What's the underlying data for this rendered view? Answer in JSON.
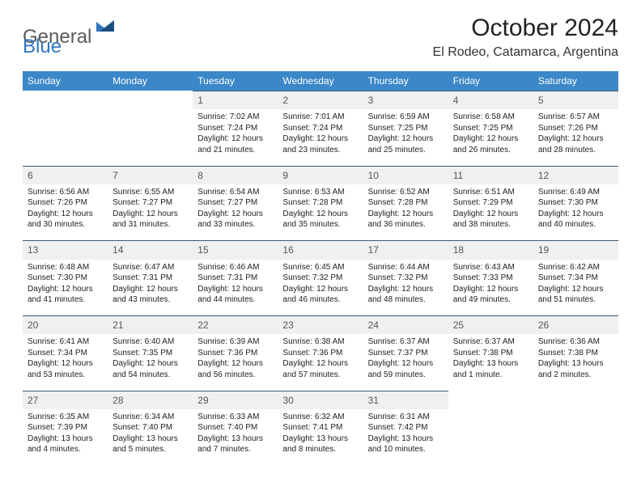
{
  "logo": {
    "text1": "General",
    "text2": "Blue"
  },
  "title": "October 2024",
  "location": "El Rodeo, Catamarca, Argentina",
  "colors": {
    "header_bg": "#3b87c8",
    "header_text": "#ffffff",
    "daynum_bg": "#eef0f2",
    "daynum_text": "#555555",
    "row_border": "#3b5b7a",
    "body_text": "#222222",
    "logo_gray": "#5a5a5a",
    "logo_blue": "#2f78bf"
  },
  "day_headers": [
    "Sunday",
    "Monday",
    "Tuesday",
    "Wednesday",
    "Thursday",
    "Friday",
    "Saturday"
  ],
  "weeks": [
    [
      null,
      null,
      {
        "n": "1",
        "sr": "7:02 AM",
        "ss": "7:24 PM",
        "dl": "12 hours and 21 minutes."
      },
      {
        "n": "2",
        "sr": "7:01 AM",
        "ss": "7:24 PM",
        "dl": "12 hours and 23 minutes."
      },
      {
        "n": "3",
        "sr": "6:59 AM",
        "ss": "7:25 PM",
        "dl": "12 hours and 25 minutes."
      },
      {
        "n": "4",
        "sr": "6:58 AM",
        "ss": "7:25 PM",
        "dl": "12 hours and 26 minutes."
      },
      {
        "n": "5",
        "sr": "6:57 AM",
        "ss": "7:26 PM",
        "dl": "12 hours and 28 minutes."
      }
    ],
    [
      {
        "n": "6",
        "sr": "6:56 AM",
        "ss": "7:26 PM",
        "dl": "12 hours and 30 minutes."
      },
      {
        "n": "7",
        "sr": "6:55 AM",
        "ss": "7:27 PM",
        "dl": "12 hours and 31 minutes."
      },
      {
        "n": "8",
        "sr": "6:54 AM",
        "ss": "7:27 PM",
        "dl": "12 hours and 33 minutes."
      },
      {
        "n": "9",
        "sr": "6:53 AM",
        "ss": "7:28 PM",
        "dl": "12 hours and 35 minutes."
      },
      {
        "n": "10",
        "sr": "6:52 AM",
        "ss": "7:28 PM",
        "dl": "12 hours and 36 minutes."
      },
      {
        "n": "11",
        "sr": "6:51 AM",
        "ss": "7:29 PM",
        "dl": "12 hours and 38 minutes."
      },
      {
        "n": "12",
        "sr": "6:49 AM",
        "ss": "7:30 PM",
        "dl": "12 hours and 40 minutes."
      }
    ],
    [
      {
        "n": "13",
        "sr": "6:48 AM",
        "ss": "7:30 PM",
        "dl": "12 hours and 41 minutes."
      },
      {
        "n": "14",
        "sr": "6:47 AM",
        "ss": "7:31 PM",
        "dl": "12 hours and 43 minutes."
      },
      {
        "n": "15",
        "sr": "6:46 AM",
        "ss": "7:31 PM",
        "dl": "12 hours and 44 minutes."
      },
      {
        "n": "16",
        "sr": "6:45 AM",
        "ss": "7:32 PM",
        "dl": "12 hours and 46 minutes."
      },
      {
        "n": "17",
        "sr": "6:44 AM",
        "ss": "7:32 PM",
        "dl": "12 hours and 48 minutes."
      },
      {
        "n": "18",
        "sr": "6:43 AM",
        "ss": "7:33 PM",
        "dl": "12 hours and 49 minutes."
      },
      {
        "n": "19",
        "sr": "6:42 AM",
        "ss": "7:34 PM",
        "dl": "12 hours and 51 minutes."
      }
    ],
    [
      {
        "n": "20",
        "sr": "6:41 AM",
        "ss": "7:34 PM",
        "dl": "12 hours and 53 minutes."
      },
      {
        "n": "21",
        "sr": "6:40 AM",
        "ss": "7:35 PM",
        "dl": "12 hours and 54 minutes."
      },
      {
        "n": "22",
        "sr": "6:39 AM",
        "ss": "7:36 PM",
        "dl": "12 hours and 56 minutes."
      },
      {
        "n": "23",
        "sr": "6:38 AM",
        "ss": "7:36 PM",
        "dl": "12 hours and 57 minutes."
      },
      {
        "n": "24",
        "sr": "6:37 AM",
        "ss": "7:37 PM",
        "dl": "12 hours and 59 minutes."
      },
      {
        "n": "25",
        "sr": "6:37 AM",
        "ss": "7:38 PM",
        "dl": "13 hours and 1 minute."
      },
      {
        "n": "26",
        "sr": "6:36 AM",
        "ss": "7:38 PM",
        "dl": "13 hours and 2 minutes."
      }
    ],
    [
      {
        "n": "27",
        "sr": "6:35 AM",
        "ss": "7:39 PM",
        "dl": "13 hours and 4 minutes."
      },
      {
        "n": "28",
        "sr": "6:34 AM",
        "ss": "7:40 PM",
        "dl": "13 hours and 5 minutes."
      },
      {
        "n": "29",
        "sr": "6:33 AM",
        "ss": "7:40 PM",
        "dl": "13 hours and 7 minutes."
      },
      {
        "n": "30",
        "sr": "6:32 AM",
        "ss": "7:41 PM",
        "dl": "13 hours and 8 minutes."
      },
      {
        "n": "31",
        "sr": "6:31 AM",
        "ss": "7:42 PM",
        "dl": "13 hours and 10 minutes."
      },
      null,
      null
    ]
  ],
  "labels": {
    "sunrise_prefix": "Sunrise: ",
    "sunset_prefix": "Sunset: ",
    "daylight_prefix": "Daylight: "
  }
}
